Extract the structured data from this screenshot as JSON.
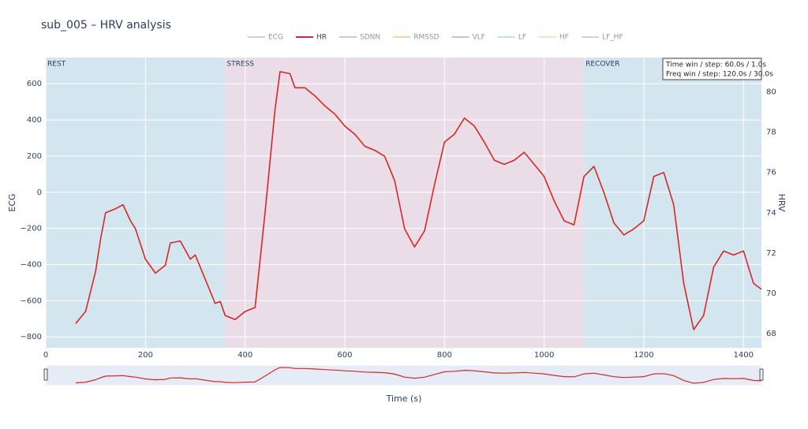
{
  "chart_data": {
    "type": "line",
    "title": "sub_005 – HRV analysis",
    "x_label": "Time (s)",
    "y_label": "ECG",
    "y2_label": "HRV",
    "xlim": [
      0,
      1436
    ],
    "xticks": [
      0,
      200,
      400,
      600,
      800,
      1000,
      1200,
      1400
    ],
    "ylim": [
      -860,
      745
    ],
    "yticks": [
      600,
      400,
      200,
      0,
      {
        "value": -200,
        "label": "−200"
      },
      {
        "value": -400,
        "label": "−400"
      },
      {
        "value": -600,
        "label": "−600"
      },
      {
        "value": -800,
        "label": "−800"
      }
    ],
    "y2lim": [
      67.3,
      81.7
    ],
    "y2ticks": [
      68,
      70,
      72,
      74,
      76,
      78,
      80
    ],
    "grid": true,
    "legend": "top",
    "regions": [
      {
        "label": "REST",
        "start": 0,
        "end": 360,
        "color": "#d3e5ef"
      },
      {
        "label": "STRESS",
        "start": 360,
        "end": 1080,
        "color": "#eadde7"
      },
      {
        "label": "RECOVER",
        "start": 1080,
        "end": 1436,
        "color": "#d3e5ef"
      }
    ],
    "annotations": [
      "Time win / step: 60.0s / 1.0s",
      "Freq win / step: 120.0s / 30.0s"
    ],
    "x": [
      60,
      80,
      100,
      110,
      120,
      140,
      155,
      170,
      180,
      200,
      220,
      240,
      250,
      270,
      290,
      300,
      320,
      340,
      350,
      360,
      380,
      400,
      420,
      440,
      460,
      470,
      490,
      500,
      520,
      540,
      560,
      580,
      600,
      620,
      640,
      660,
      680,
      700,
      720,
      740,
      760,
      780,
      800,
      820,
      840,
      860,
      880,
      900,
      920,
      940,
      960,
      980,
      1000,
      1020,
      1040,
      1060,
      1080,
      1100,
      1120,
      1140,
      1160,
      1180,
      1200,
      1220,
      1240,
      1260,
      1280,
      1300,
      1320,
      1340,
      1360,
      1380,
      1400,
      1420,
      1436
    ],
    "series": [
      {
        "name": "ECG",
        "color": "#9fb3d9",
        "visible": "legendonly"
      },
      {
        "name": "HR",
        "color": "#d62728",
        "axis": "y2",
        "values": [
          68.5,
          69.1,
          71.1,
          72.7,
          74.0,
          74.2,
          74.4,
          73.6,
          73.2,
          71.7,
          71.0,
          71.4,
          72.5,
          72.6,
          71.7,
          71.9,
          70.7,
          69.5,
          69.6,
          68.9,
          68.7,
          69.1,
          69.3,
          74.0,
          79.1,
          81.0,
          80.9,
          80.2,
          80.2,
          79.8,
          79.3,
          78.9,
          78.3,
          77.9,
          77.3,
          77.1,
          76.8,
          75.6,
          73.2,
          72.3,
          73.1,
          75.4,
          77.5,
          77.9,
          78.7,
          78.3,
          77.5,
          76.6,
          76.4,
          76.6,
          77.0,
          76.4,
          75.8,
          74.6,
          73.6,
          73.4,
          75.8,
          76.3,
          75.0,
          73.5,
          72.9,
          73.2,
          73.6,
          75.8,
          76.0,
          74.4,
          70.5,
          68.2,
          68.9,
          71.3,
          72.1,
          71.9,
          72.1,
          70.5,
          70.2
        ]
      },
      {
        "name": "SDNN",
        "color": "#7fc97f",
        "visible": "legendonly"
      },
      {
        "name": "RMSSD",
        "color": "#fdb462",
        "visible": "legendonly"
      },
      {
        "name": "VLF",
        "color": "#80a8cf",
        "visible": "legendonly"
      },
      {
        "name": "LF",
        "color": "#8ed3e8",
        "visible": "legendonly"
      },
      {
        "name": "HF",
        "color": "#f2d77e",
        "visible": "legendonly"
      },
      {
        "name": "LF_HF",
        "color": "#b3b3b3",
        "visible": "legendonly"
      }
    ]
  }
}
